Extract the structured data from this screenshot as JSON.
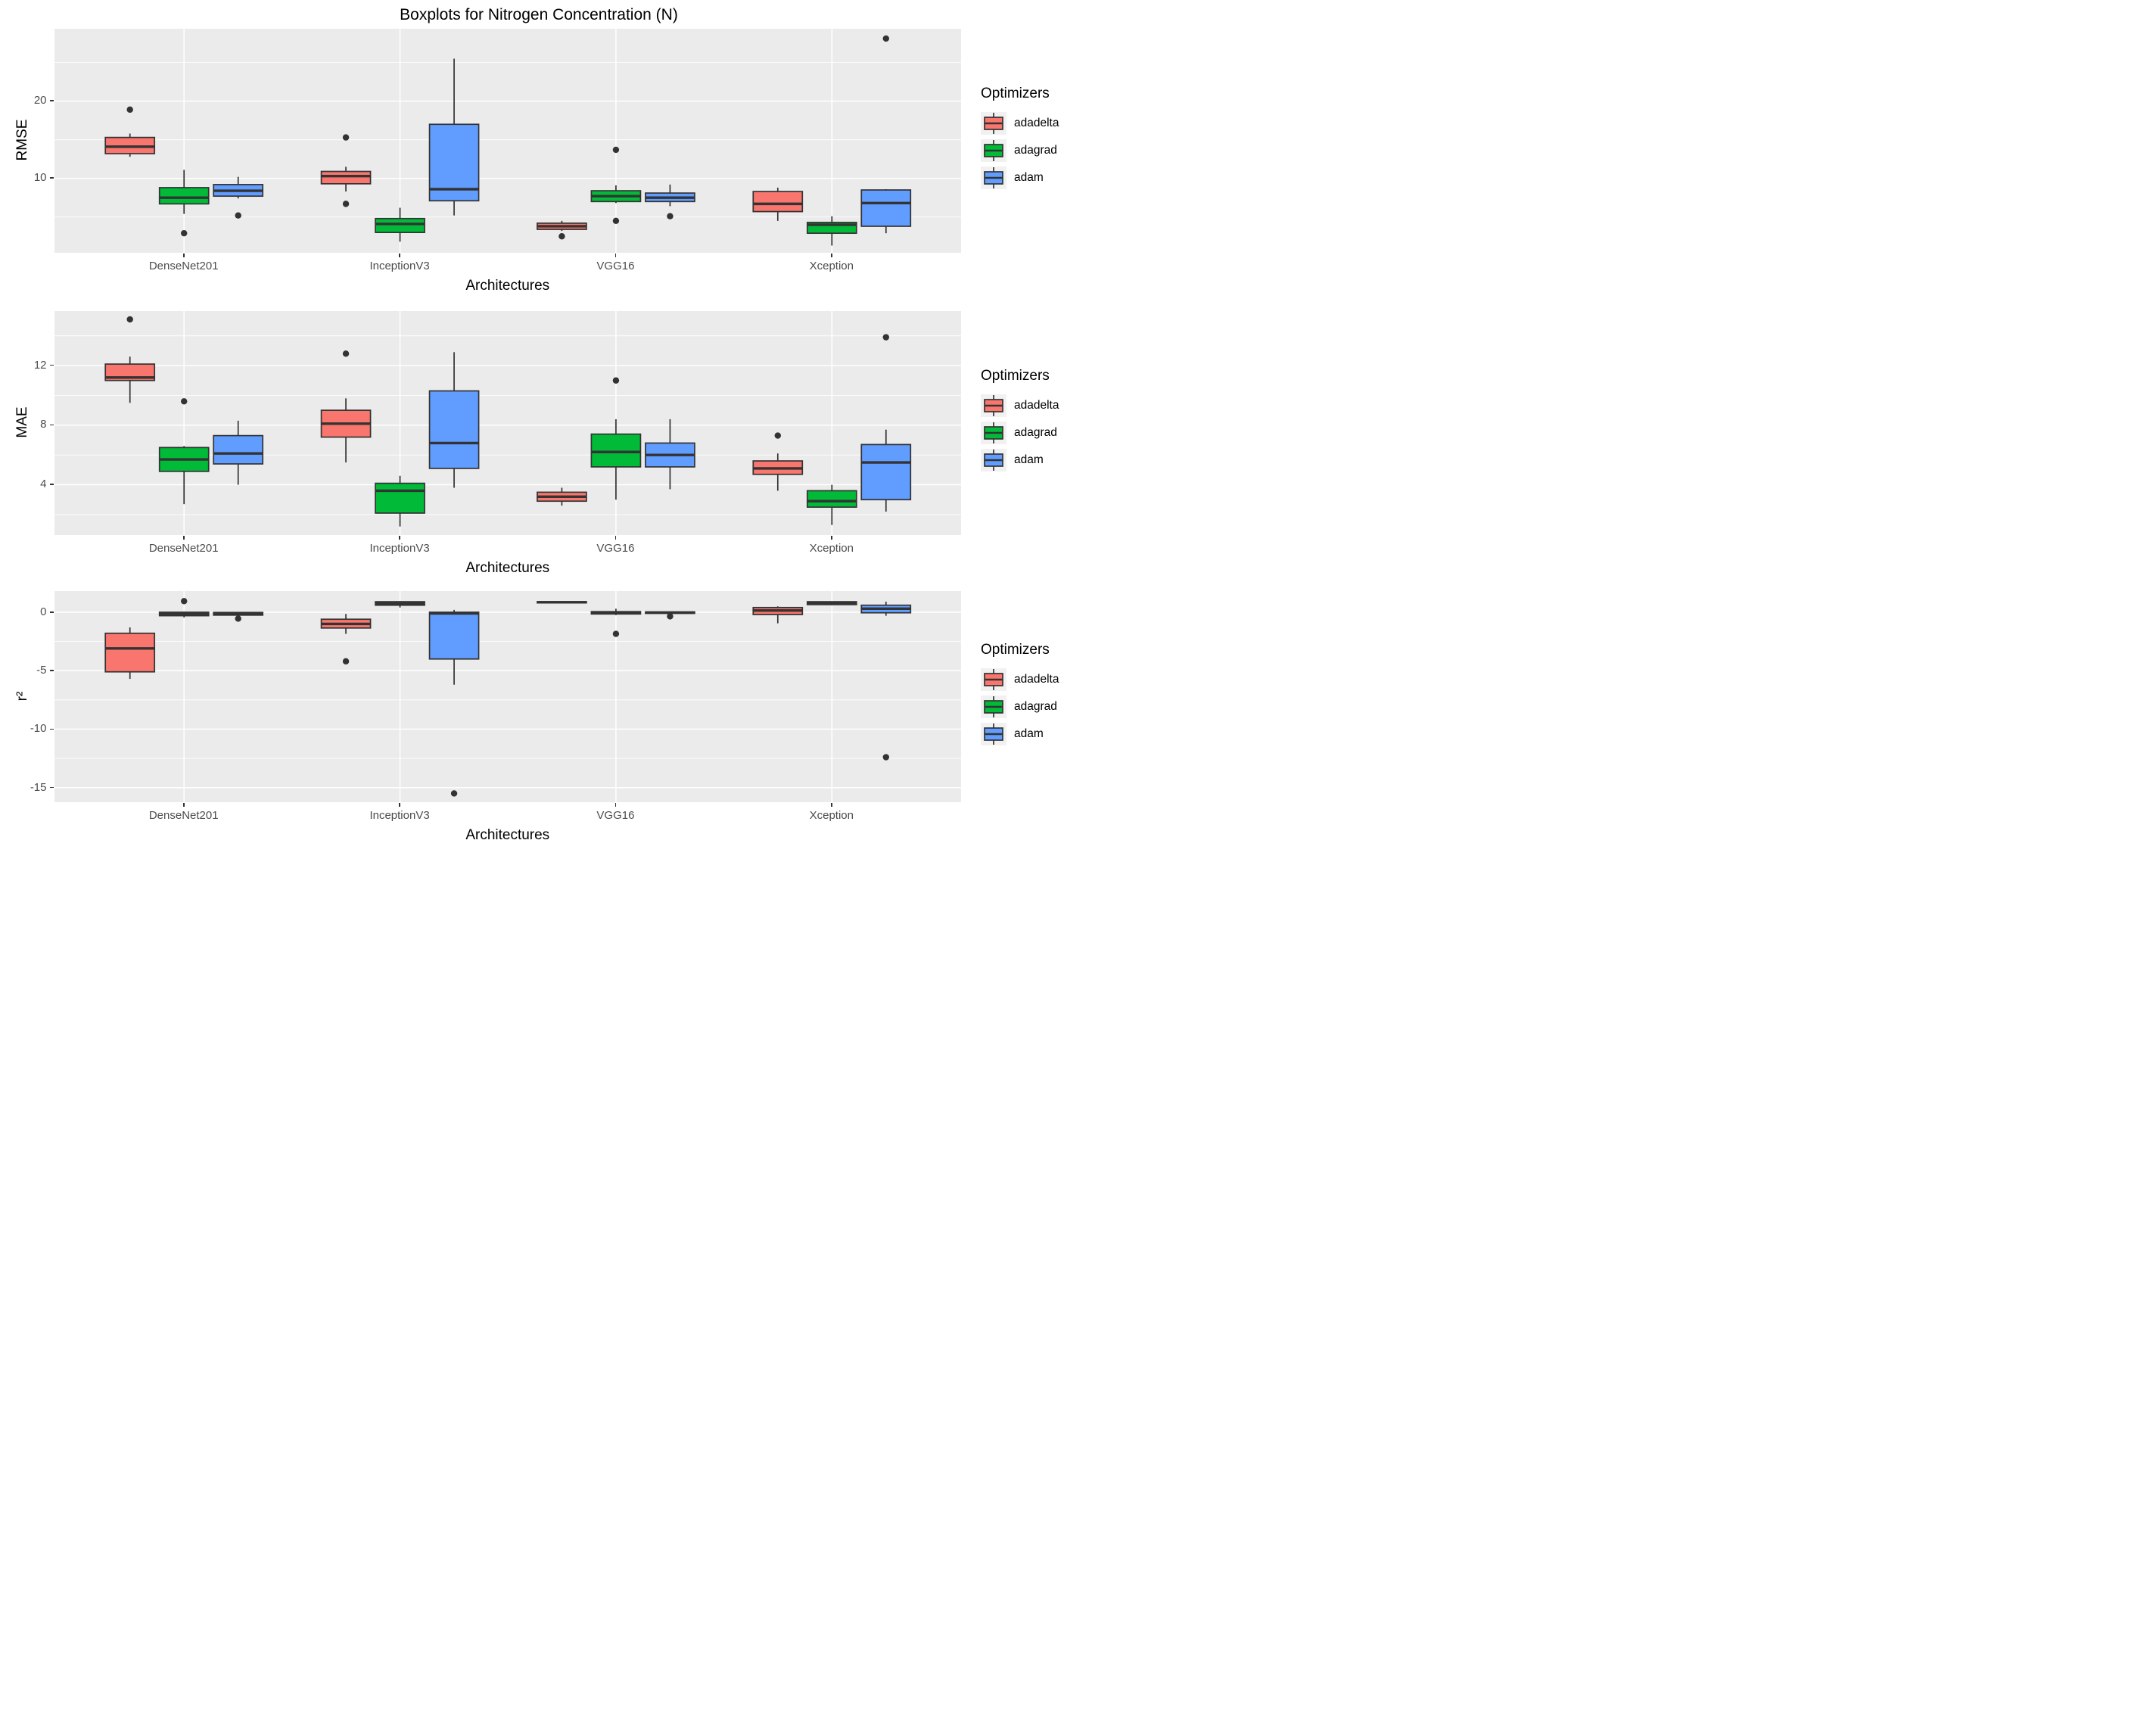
{
  "title": "Boxplots for Nitrogen Concentration (N)",
  "legend": {
    "title": "Optimizers",
    "entries": [
      "adadelta",
      "adagrad",
      "adam"
    ]
  },
  "colors": {
    "adadelta": "#F8766D",
    "adagrad": "#00BA38",
    "adam": "#619CFF",
    "box_outline": "#333333",
    "panel_background": "#EBEBEB",
    "gridline": "#FFFFFF",
    "tick_text": "#4D4D4D",
    "outlier": "#333333"
  },
  "chart_data": [
    {
      "type": "boxplot",
      "panel": "RMSE",
      "ylabel": "RMSE",
      "xlabel": "Architectures",
      "categories": [
        "DenseNet201",
        "InceptionV3",
        "VGG16",
        "Xception"
      ],
      "y_axis": {
        "breaks": [
          10,
          20
        ],
        "labels": [
          "10",
          "20"
        ],
        "minor": [
          5,
          15,
          25
        ],
        "lim": [
          0.32,
          29.37
        ]
      },
      "legend_position": "right",
      "series": [
        {
          "name": "adadelta",
          "color": "#F8766D",
          "boxes": [
            {
              "low": 12.8,
              "q1": 13.2,
              "median": 14.1,
              "q3": 15.3,
              "high": 15.8,
              "outliers": [
                18.9
              ]
            },
            {
              "low": 8.3,
              "q1": 9.3,
              "median": 10.3,
              "q3": 10.9,
              "high": 11.5,
              "outliers": [
                15.3,
                6.7
              ]
            },
            {
              "low": 3.2,
              "q1": 3.4,
              "median": 3.8,
              "q3": 4.2,
              "high": 4.5,
              "outliers": [
                2.5
              ]
            },
            {
              "low": 4.5,
              "q1": 5.7,
              "median": 6.7,
              "q3": 8.3,
              "high": 8.8,
              "outliers": []
            }
          ]
        },
        {
          "name": "adagrad",
          "color": "#00BA38",
          "boxes": [
            {
              "low": 5.4,
              "q1": 6.7,
              "median": 7.5,
              "q3": 8.8,
              "high": 11.1,
              "outliers": [
                2.9
              ]
            },
            {
              "low": 1.8,
              "q1": 3.0,
              "median": 4.1,
              "q3": 4.8,
              "high": 6.2,
              "outliers": []
            },
            {
              "low": 6.8,
              "q1": 7.0,
              "median": 7.7,
              "q3": 8.4,
              "high": 9.1,
              "outliers": [
                13.7,
                4.5
              ]
            },
            {
              "low": 1.3,
              "q1": 2.9,
              "median": 4.0,
              "q3": 4.3,
              "high": 5.1,
              "outliers": []
            }
          ]
        },
        {
          "name": "adam",
          "color": "#619CFF",
          "boxes": [
            {
              "low": 7.4,
              "q1": 7.7,
              "median": 8.4,
              "q3": 9.2,
              "high": 10.2,
              "outliers": [
                5.2
              ]
            },
            {
              "low": 5.2,
              "q1": 7.1,
              "median": 8.6,
              "q3": 17.0,
              "high": 25.5,
              "outliers": []
            },
            {
              "low": 6.4,
              "q1": 7.0,
              "median": 7.5,
              "q3": 8.1,
              "high": 9.2,
              "outliers": [
                5.1
              ]
            },
            {
              "low": 2.9,
              "q1": 3.8,
              "median": 6.8,
              "q3": 8.5,
              "high": 8.6,
              "outliers": [
                28.1
              ]
            }
          ]
        }
      ]
    },
    {
      "type": "boxplot",
      "panel": "MAE",
      "ylabel": "MAE",
      "xlabel": "Architectures",
      "categories": [
        "DenseNet201",
        "InceptionV3",
        "VGG16",
        "Xception"
      ],
      "y_axis": {
        "breaks": [
          4,
          8,
          12
        ],
        "labels": [
          "4",
          "8",
          "12"
        ],
        "minor": [
          2,
          6,
          10,
          14
        ],
        "lim": [
          0.6,
          15.66
        ]
      },
      "legend_position": "right",
      "series": [
        {
          "name": "adadelta",
          "color": "#F8766D",
          "boxes": [
            {
              "low": 9.5,
              "q1": 11.0,
              "median": 11.2,
              "q3": 12.1,
              "high": 12.6,
              "outliers": [
                15.1
              ]
            },
            {
              "low": 5.5,
              "q1": 7.2,
              "median": 8.1,
              "q3": 9.0,
              "high": 9.8,
              "outliers": [
                12.8
              ]
            },
            {
              "low": 2.6,
              "q1": 2.9,
              "median": 3.2,
              "q3": 3.5,
              "high": 3.8,
              "outliers": []
            },
            {
              "low": 3.6,
              "q1": 4.7,
              "median": 5.1,
              "q3": 5.6,
              "high": 6.1,
              "outliers": [
                7.3
              ]
            }
          ]
        },
        {
          "name": "adagrad",
          "color": "#00BA38",
          "boxes": [
            {
              "low": 2.7,
              "q1": 4.9,
              "median": 5.7,
              "q3": 6.5,
              "high": 6.6,
              "outliers": [
                9.6
              ]
            },
            {
              "low": 1.2,
              "q1": 2.1,
              "median": 3.6,
              "q3": 4.1,
              "high": 4.6,
              "outliers": []
            },
            {
              "low": 3.0,
              "q1": 5.2,
              "median": 6.2,
              "q3": 7.4,
              "high": 8.4,
              "outliers": [
                11.0
              ]
            },
            {
              "low": 1.3,
              "q1": 2.5,
              "median": 2.9,
              "q3": 3.6,
              "high": 4.0,
              "outliers": []
            }
          ]
        },
        {
          "name": "adam",
          "color": "#619CFF",
          "boxes": [
            {
              "low": 4.0,
              "q1": 5.4,
              "median": 6.1,
              "q3": 7.3,
              "high": 8.3,
              "outliers": []
            },
            {
              "low": 3.8,
              "q1": 5.1,
              "median": 6.8,
              "q3": 10.3,
              "high": 12.9,
              "outliers": []
            },
            {
              "low": 3.7,
              "q1": 5.2,
              "median": 6.0,
              "q3": 6.8,
              "high": 8.4,
              "outliers": []
            },
            {
              "low": 2.2,
              "q1": 3.0,
              "median": 5.5,
              "q3": 6.7,
              "high": 7.7,
              "outliers": [
                13.9
              ]
            }
          ]
        }
      ]
    },
    {
      "type": "boxplot",
      "panel": "r2",
      "ylabel": "r²",
      "xlabel": "Architectures",
      "categories": [
        "DenseNet201",
        "InceptionV3",
        "VGG16",
        "Xception"
      ],
      "y_axis": {
        "breaks": [
          0,
          -5,
          -10,
          -15
        ],
        "labels": [
          "0",
          "-5",
          "-10",
          "-15"
        ],
        "minor": [
          -2.5,
          -7.5,
          -12.5
        ],
        "lim": [
          -16.25,
          1.81
        ]
      },
      "legend_position": "right",
      "series": [
        {
          "name": "adadelta",
          "color": "#F8766D",
          "boxes": [
            {
              "low": -5.7,
              "q1": -5.1,
              "median": -3.1,
              "q3": -1.8,
              "high": -1.3,
              "outliers": []
            },
            {
              "low": -1.85,
              "q1": -1.35,
              "median": -1.0,
              "q3": -0.6,
              "high": -0.15,
              "outliers": [
                -4.2
              ]
            },
            {
              "low": 0.75,
              "q1": 0.8,
              "median": 0.85,
              "q3": 0.9,
              "high": 0.92,
              "outliers": []
            },
            {
              "low": -0.95,
              "q1": -0.2,
              "median": 0.15,
              "q3": 0.4,
              "high": 0.5,
              "outliers": []
            }
          ]
        },
        {
          "name": "adagrad",
          "color": "#00BA38",
          "boxes": [
            {
              "low": -0.45,
              "q1": -0.3,
              "median": -0.15,
              "q3": 0.0,
              "high": 0.05,
              "outliers": [
                0.95
              ]
            },
            {
              "low": 0.4,
              "q1": 0.6,
              "median": 0.75,
              "q3": 0.9,
              "high": 0.95,
              "outliers": []
            },
            {
              "low": -0.25,
              "q1": -0.15,
              "median": -0.05,
              "q3": 0.05,
              "high": 0.3,
              "outliers": [
                -1.85
              ]
            },
            {
              "low": 0.6,
              "q1": 0.65,
              "median": 0.8,
              "q3": 0.9,
              "high": 0.92,
              "outliers": []
            }
          ]
        },
        {
          "name": "adam",
          "color": "#619CFF",
          "boxes": [
            {
              "low": -0.3,
              "q1": -0.25,
              "median": -0.15,
              "q3": -0.02,
              "high": 0.0,
              "outliers": [
                -0.55
              ]
            },
            {
              "low": -6.2,
              "q1": -4.0,
              "median": -0.1,
              "q3": 0.0,
              "high": 0.2,
              "outliers": [
                -15.5
              ]
            },
            {
              "low": -0.15,
              "q1": -0.1,
              "median": -0.03,
              "q3": 0.02,
              "high": 0.05,
              "outliers": [
                -0.35
              ]
            },
            {
              "low": -0.3,
              "q1": -0.05,
              "median": 0.3,
              "q3": 0.6,
              "high": 0.9,
              "outliers": [
                -12.4
              ]
            }
          ]
        }
      ]
    }
  ]
}
